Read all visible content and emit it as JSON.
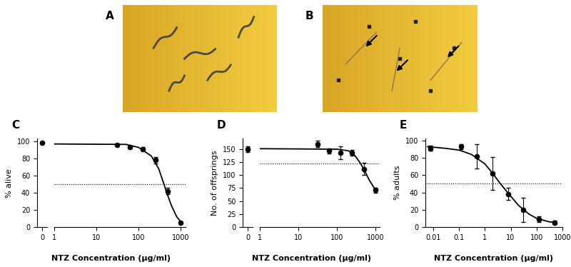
{
  "images": [
    {
      "label": "A"
    },
    {
      "label": "B"
    }
  ],
  "chart_data": [
    {
      "type": "scatter",
      "title": "C",
      "x_label": "NTZ Concentration (µg/ml)",
      "y_label": "% alive",
      "log": "x",
      "color": "#000000",
      "marker": "o",
      "x": [
        0,
        31.25,
        62.5,
        125,
        250,
        500,
        1000
      ],
      "values": [
        98,
        96,
        93,
        91,
        78,
        42,
        5
      ],
      "errors": [
        0,
        0,
        1.5,
        2,
        3.5,
        4,
        0
      ],
      "curve_x": [
        1,
        50,
        100,
        200,
        300,
        400,
        450,
        600,
        800,
        1000
      ],
      "curve_values": [
        97,
        96.5,
        93,
        83,
        68,
        50,
        42,
        25,
        12,
        6
      ],
      "reference_line": 50,
      "xlim": [
        1,
        1300
      ],
      "xticks": [
        1,
        10,
        100,
        1000
      ],
      "zero_xlim": [
        -1,
        1
      ],
      "zero_xticks": [
        0
      ],
      "ylim": [
        0,
        103
      ],
      "yticks": [
        0,
        20,
        40,
        60,
        80,
        100
      ]
    },
    {
      "type": "scatter",
      "title": "D",
      "x_label": "NTZ Concentration (µg/ml)",
      "y_label": "No. of offsprings",
      "log": "x",
      "color": "#000000",
      "marker": "o",
      "x": [
        0,
        31.25,
        62.5,
        125,
        250,
        500,
        1000
      ],
      "values": [
        150,
        160,
        147,
        143,
        143,
        112,
        71
      ],
      "errors": [
        5,
        6,
        5,
        12,
        6,
        12,
        5
      ],
      "curve_x": [
        1,
        100,
        200,
        300,
        400,
        500,
        700,
        1000
      ],
      "curve_values": [
        151,
        150,
        147,
        137,
        124,
        112,
        90,
        72
      ],
      "reference_line": 122,
      "xlim": [
        1,
        1300
      ],
      "xticks": [
        1,
        10,
        100,
        1000
      ],
      "zero_xlim": [
        -1,
        1
      ],
      "zero_xticks": [
        0
      ],
      "ylim": [
        0,
        170
      ],
      "yticks": [
        0,
        25,
        50,
        75,
        100,
        125,
        150
      ]
    },
    {
      "type": "scatter",
      "title": "E",
      "x_label": "NTZ Concentration (µg/ml)",
      "y_label": "% adults",
      "log": "x",
      "color": "#000000",
      "marker": "o",
      "x": [
        0.0078,
        0.12,
        0.49,
        1.95,
        7.8,
        31.25,
        125,
        500
      ],
      "values": [
        91,
        93,
        82,
        62,
        38,
        20,
        9,
        5
      ],
      "errors": [
        3,
        3,
        14,
        19,
        7,
        14,
        3,
        2
      ],
      "curve_x": [
        0.006,
        0.03,
        0.1,
        0.3,
        1,
        2,
        4,
        8,
        20,
        50,
        100,
        300,
        600
      ],
      "curve_values": [
        93,
        91,
        89,
        84,
        73,
        62,
        50,
        39,
        25,
        15,
        10,
        6,
        5
      ],
      "reference_line": 50,
      "xlim": [
        0.005,
        1000
      ],
      "xticks": [
        0.01,
        0.1,
        1,
        10,
        100,
        1000
      ],
      "ylim": [
        0,
        102
      ],
      "yticks": [
        0,
        20,
        40,
        60,
        80,
        100
      ]
    }
  ]
}
